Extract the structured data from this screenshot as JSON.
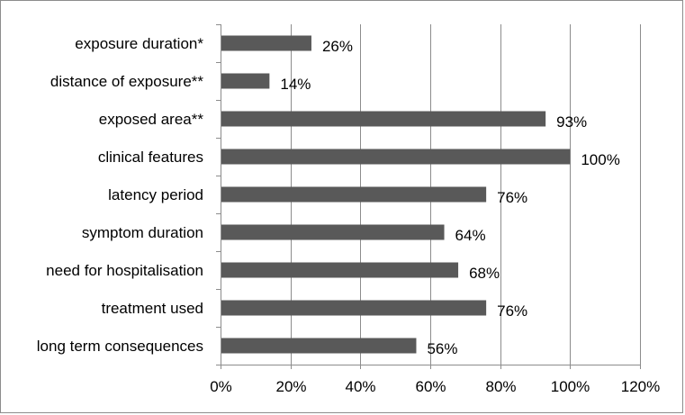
{
  "chart_data": {
    "type": "bar",
    "orientation": "horizontal",
    "categories": [
      "exposure duration*",
      "distance of exposure**",
      "exposed area**",
      "clinical features",
      "latency period",
      "symptom duration",
      "need for hospitalisation",
      "treatment used",
      "long term consequences"
    ],
    "values": [
      26,
      14,
      93,
      100,
      76,
      64,
      68,
      76,
      56
    ],
    "value_labels": [
      "26%",
      "14%",
      "93%",
      "100%",
      "76%",
      "64%",
      "68%",
      "76%",
      "56%"
    ],
    "x_ticks": [
      "0%",
      "20%",
      "40%",
      "60%",
      "80%",
      "100%",
      "120%"
    ],
    "xlim": [
      0,
      120
    ],
    "xlabel": "",
    "ylabel": "",
    "title": "",
    "grid": true,
    "legend": "none",
    "bar_color": "#595959",
    "grid_color": "#8c8c8c"
  }
}
